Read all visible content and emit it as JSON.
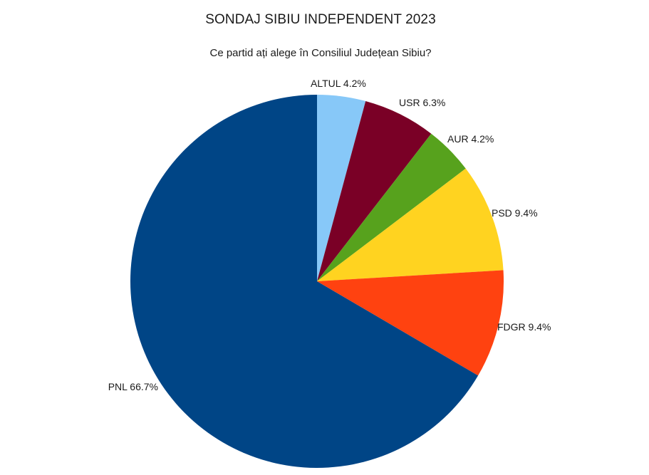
{
  "chart_data": {
    "type": "pie",
    "title": "SONDAJ SIBIU INDEPENDENT 2023",
    "subtitle": "Ce partid ați alege în Consiliul Județean Sibiu?",
    "start_angle_deg": 0,
    "direction": "clockwise",
    "slices": [
      {
        "name": "ALTUL",
        "value": 4.2,
        "label": "ALTUL 4.2%",
        "color": "#87c8f8"
      },
      {
        "name": "USR",
        "value": 6.3,
        "label": "USR 6.3%",
        "color": "#7a0026"
      },
      {
        "name": "AUR",
        "value": 4.2,
        "label": "AUR 4.2%",
        "color": "#57a21d"
      },
      {
        "name": "PSD",
        "value": 9.4,
        "label": "PSD 9.4%",
        "color": "#ffd320"
      },
      {
        "name": "FDGR",
        "value": 9.4,
        "label": "FDGR 9.4%",
        "color": "#ff4210"
      },
      {
        "name": "PNL",
        "value": 66.7,
        "label": "PNL  66.7%",
        "color": "#004586"
      }
    ]
  }
}
